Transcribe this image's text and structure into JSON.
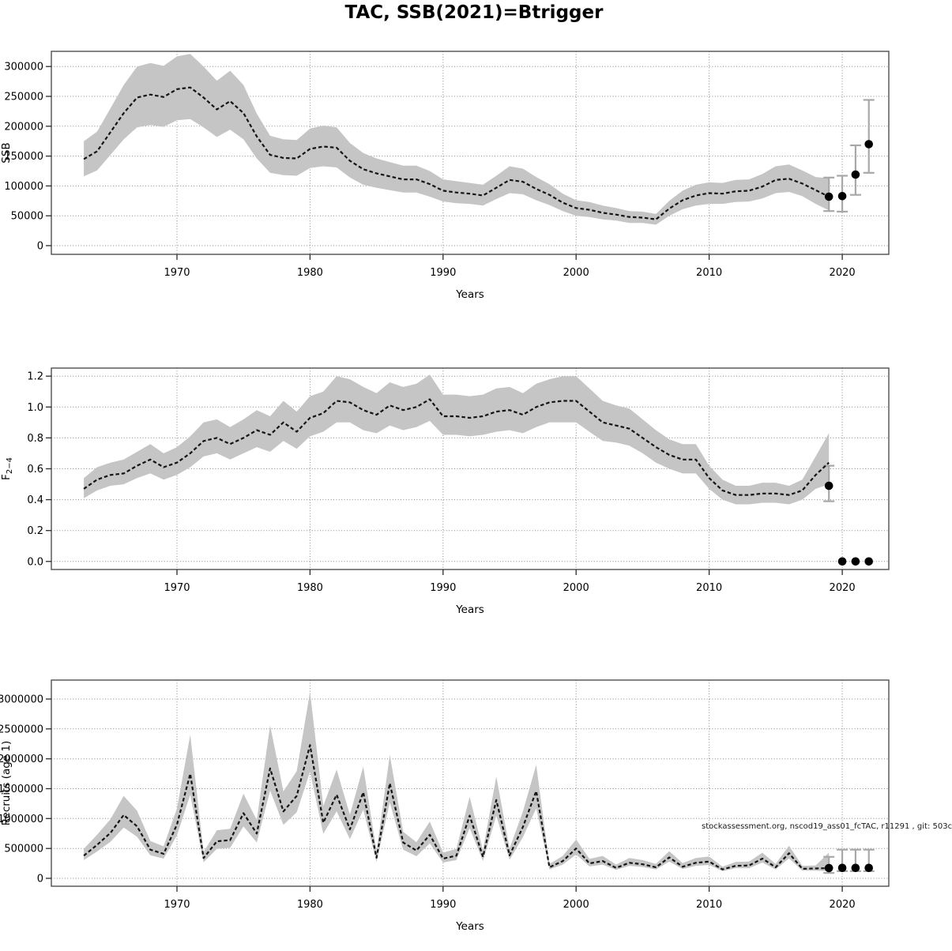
{
  "title": "TAC, SSB(2021)=Btrigger",
  "watermark": "stockassessment.org, nscod19_ass01_fcTAC, r11291 , git: 503c",
  "colors": {
    "estimate_line": "#141414",
    "confidence_ribbon": "#c5c5c5",
    "errorbar": "#a8a8a8",
    "forecast_point": "#000000",
    "gridline": "#878787",
    "frame": "#4f4f4f",
    "background": "#ffffff"
  },
  "chart_data": [
    {
      "type": "line",
      "name": "ssb-panel",
      "title": "",
      "xlabel": "Years",
      "ylabel": "SSB",
      "ylim": [
        0,
        325000
      ],
      "grid": true,
      "xticks": [
        1970,
        1980,
        1990,
        2000,
        2010,
        2020
      ],
      "xtick_labels": [
        "1970",
        "1980",
        "1990",
        "2000",
        "2010",
        "2020"
      ],
      "yticks": [
        0,
        50000,
        100000,
        150000,
        200000,
        250000,
        300000
      ],
      "ytick_labels": [
        "0",
        "50000",
        "100000",
        "150000",
        "200000",
        "250000",
        "300000"
      ],
      "x": [
        1963,
        1964,
        1965,
        1966,
        1967,
        1968,
        1969,
        1970,
        1971,
        1972,
        1973,
        1974,
        1975,
        1976,
        1977,
        1978,
        1979,
        1980,
        1981,
        1982,
        1983,
        1984,
        1985,
        1986,
        1987,
        1988,
        1989,
        1990,
        1991,
        1992,
        1993,
        1994,
        1995,
        1996,
        1997,
        1998,
        1999,
        2000,
        2001,
        2002,
        2003,
        2004,
        2005,
        2006,
        2007,
        2008,
        2009,
        2010,
        2011,
        2012,
        2013,
        2014,
        2015,
        2016,
        2017,
        2018,
        2019
      ],
      "series": [
        {
          "name": "SSB estimate",
          "values": [
            145000,
            158000,
            190000,
            222000,
            248000,
            253000,
            249000,
            262000,
            265000,
            248000,
            228000,
            242000,
            222000,
            183000,
            152000,
            147000,
            146000,
            162000,
            166000,
            164000,
            142000,
            128000,
            121000,
            116000,
            111000,
            111000,
            103000,
            92000,
            89000,
            87000,
            84000,
            97000,
            110000,
            107000,
            95000,
            85000,
            72000,
            63000,
            60000,
            55000,
            52000,
            48000,
            47000,
            44000,
            62000,
            76000,
            84000,
            88000,
            87000,
            91000,
            92000,
            99000,
            110000,
            112000,
            104000,
            93000,
            82000
          ]
        },
        {
          "name": "lower 95% CI",
          "values": [
            116000,
            126000,
            152000,
            178000,
            198000,
            202000,
            199000,
            210000,
            212000,
            198000,
            182000,
            194000,
            178000,
            146000,
            122000,
            118000,
            117000,
            130000,
            133000,
            131000,
            114000,
            102000,
            97000,
            93000,
            89000,
            89000,
            82000,
            74000,
            71000,
            70000,
            67000,
            78000,
            88000,
            86000,
            76000,
            68000,
            58000,
            50000,
            48000,
            44000,
            42000,
            38000,
            38000,
            35000,
            50000,
            61000,
            67000,
            70000,
            70000,
            73000,
            74000,
            79000,
            88000,
            90000,
            83000,
            70000,
            59000
          ]
        },
        {
          "name": "upper 95% CI",
          "values": [
            175000,
            191000,
            230000,
            269000,
            300000,
            306000,
            301000,
            317000,
            321000,
            300000,
            276000,
            293000,
            269000,
            221000,
            184000,
            178000,
            177000,
            196000,
            201000,
            198000,
            172000,
            155000,
            146000,
            140000,
            134000,
            134000,
            125000,
            111000,
            108000,
            105000,
            102000,
            117000,
            133000,
            129000,
            115000,
            103000,
            87000,
            76000,
            73000,
            67000,
            63000,
            58000,
            57000,
            53000,
            75000,
            92000,
            102000,
            106000,
            105000,
            110000,
            111000,
            120000,
            133000,
            136000,
            126000,
            115000,
            113000
          ]
        }
      ],
      "forecast": {
        "years": [
          2019,
          2020,
          2021,
          2022
        ],
        "values": [
          82000,
          83000,
          119000,
          170000
        ],
        "lo": [
          58000,
          57000,
          85000,
          122000
        ],
        "hi": [
          114000,
          117000,
          168000,
          244000
        ]
      }
    },
    {
      "type": "line",
      "name": "fishing-mortality-panel",
      "title": "",
      "xlabel": "Years",
      "ylabel": "F",
      "ylabel_sub": "2−4",
      "ylim": [
        0,
        1.25
      ],
      "grid": true,
      "xticks": [
        1970,
        1980,
        1990,
        2000,
        2010,
        2020
      ],
      "xtick_labels": [
        "1970",
        "1980",
        "1990",
        "2000",
        "2010",
        "2020"
      ],
      "yticks": [
        0.0,
        0.2,
        0.4,
        0.6,
        0.8,
        1.0,
        1.2
      ],
      "ytick_labels": [
        "0.0",
        "0.2",
        "0.4",
        "0.6",
        "0.8",
        "1.0",
        "1.2"
      ],
      "x": [
        1963,
        1964,
        1965,
        1966,
        1967,
        1968,
        1969,
        1970,
        1971,
        1972,
        1973,
        1974,
        1975,
        1976,
        1977,
        1978,
        1979,
        1980,
        1981,
        1982,
        1983,
        1984,
        1985,
        1986,
        1987,
        1988,
        1989,
        1990,
        1991,
        1992,
        1993,
        1994,
        1995,
        1996,
        1997,
        1998,
        1999,
        2000,
        2001,
        2002,
        2003,
        2004,
        2005,
        2006,
        2007,
        2008,
        2009,
        2010,
        2011,
        2012,
        2013,
        2014,
        2015,
        2016,
        2017,
        2018,
        2019
      ],
      "series": [
        {
          "name": "F estimate",
          "values": [
            0.47,
            0.53,
            0.56,
            0.57,
            0.62,
            0.66,
            0.61,
            0.64,
            0.7,
            0.78,
            0.8,
            0.76,
            0.8,
            0.85,
            0.82,
            0.9,
            0.84,
            0.93,
            0.96,
            1.04,
            1.03,
            0.98,
            0.95,
            1.01,
            0.98,
            1.0,
            1.05,
            0.94,
            0.94,
            0.93,
            0.94,
            0.97,
            0.98,
            0.95,
            1.0,
            1.03,
            1.04,
            1.04,
            0.97,
            0.9,
            0.88,
            0.86,
            0.8,
            0.74,
            0.69,
            0.66,
            0.66,
            0.54,
            0.46,
            0.43,
            0.43,
            0.44,
            0.44,
            0.43,
            0.46,
            0.56,
            0.64
          ]
        },
        {
          "name": "lower 95% CI",
          "values": [
            0.41,
            0.46,
            0.49,
            0.5,
            0.54,
            0.57,
            0.53,
            0.56,
            0.61,
            0.68,
            0.7,
            0.66,
            0.7,
            0.74,
            0.71,
            0.78,
            0.73,
            0.81,
            0.84,
            0.9,
            0.9,
            0.85,
            0.83,
            0.88,
            0.85,
            0.87,
            0.91,
            0.82,
            0.82,
            0.81,
            0.82,
            0.84,
            0.85,
            0.83,
            0.87,
            0.9,
            0.9,
            0.9,
            0.84,
            0.78,
            0.77,
            0.75,
            0.7,
            0.64,
            0.6,
            0.57,
            0.57,
            0.47,
            0.4,
            0.37,
            0.37,
            0.38,
            0.38,
            0.37,
            0.4,
            0.47,
            0.5
          ]
        },
        {
          "name": "upper 95% CI",
          "values": [
            0.54,
            0.61,
            0.64,
            0.66,
            0.71,
            0.76,
            0.7,
            0.74,
            0.81,
            0.9,
            0.92,
            0.87,
            0.92,
            0.98,
            0.94,
            1.04,
            0.97,
            1.07,
            1.1,
            1.2,
            1.18,
            1.13,
            1.09,
            1.16,
            1.13,
            1.15,
            1.21,
            1.08,
            1.08,
            1.07,
            1.08,
            1.12,
            1.13,
            1.09,
            1.15,
            1.18,
            1.2,
            1.2,
            1.12,
            1.04,
            1.01,
            0.99,
            0.92,
            0.85,
            0.79,
            0.76,
            0.76,
            0.62,
            0.53,
            0.49,
            0.49,
            0.51,
            0.51,
            0.49,
            0.53,
            0.68,
            0.83
          ]
        }
      ],
      "forecast": {
        "years": [
          2019,
          2020,
          2021,
          2022
        ],
        "values": [
          0.49,
          0.0,
          0.0,
          0.0
        ],
        "lo": [
          0.39,
          null,
          null,
          null
        ],
        "hi": [
          0.62,
          null,
          null,
          null
        ]
      }
    },
    {
      "type": "line",
      "name": "recruits-panel",
      "title": "",
      "xlabel": "Years",
      "ylabel": "Recruits (age 1)",
      "ylim": [
        0,
        3300000
      ],
      "grid": true,
      "xticks": [
        1970,
        1980,
        1990,
        2000,
        2010,
        2020
      ],
      "xtick_labels": [
        "1970",
        "1980",
        "1990",
        "2000",
        "2010",
        "2020"
      ],
      "yticks": [
        0,
        500000,
        1000000,
        1500000,
        2000000,
        2500000,
        3000000
      ],
      "ytick_labels": [
        "0",
        "500000",
        "1000000",
        "1500000",
        "2000000",
        "2500000",
        "3000000"
      ],
      "x": [
        1963,
        1964,
        1965,
        1966,
        1967,
        1968,
        1969,
        1970,
        1971,
        1972,
        1973,
        1974,
        1975,
        1976,
        1977,
        1978,
        1979,
        1980,
        1981,
        1982,
        1983,
        1984,
        1985,
        1986,
        1987,
        1988,
        1989,
        1990,
        1991,
        1992,
        1993,
        1994,
        1995,
        1996,
        1997,
        1998,
        1999,
        2000,
        2001,
        2002,
        2003,
        2004,
        2005,
        2006,
        2007,
        2008,
        2009,
        2010,
        2011,
        2012,
        2013,
        2014,
        2015,
        2016,
        2017,
        2018,
        2019
      ],
      "series": [
        {
          "name": "Recruitment estimate",
          "values": [
            380000,
            560000,
            760000,
            1060000,
            870000,
            480000,
            410000,
            900000,
            1750000,
            340000,
            620000,
            640000,
            1090000,
            750000,
            1840000,
            1120000,
            1380000,
            2230000,
            930000,
            1400000,
            820000,
            1440000,
            345000,
            1590000,
            600000,
            465000,
            730000,
            330000,
            380000,
            1050000,
            360000,
            1310000,
            385000,
            860000,
            1460000,
            185000,
            290000,
            500000,
            250000,
            290000,
            175000,
            260000,
            235000,
            185000,
            350000,
            195000,
            260000,
            280000,
            150000,
            210000,
            215000,
            330000,
            185000,
            420000,
            160000,
            165000,
            172000
          ]
        },
        {
          "name": "lower 95% CI",
          "values": [
            305000,
            450000,
            610000,
            850000,
            695000,
            385000,
            330000,
            720000,
            1400000,
            270000,
            495000,
            510000,
            870000,
            600000,
            1470000,
            895000,
            1105000,
            1785000,
            745000,
            1120000,
            655000,
            1150000,
            275000,
            1270000,
            480000,
            370000,
            585000,
            265000,
            305000,
            840000,
            290000,
            1050000,
            310000,
            690000,
            1170000,
            150000,
            230000,
            400000,
            200000,
            230000,
            140000,
            210000,
            190000,
            150000,
            280000,
            155000,
            210000,
            225000,
            120000,
            170000,
            170000,
            265000,
            150000,
            335000,
            130000,
            130000,
            120000
          ]
        },
        {
          "name": "upper 95% CI",
          "values": [
            495000,
            730000,
            990000,
            1380000,
            1130000,
            625000,
            535000,
            1170000,
            2400000,
            440000,
            805000,
            830000,
            1415000,
            975000,
            2560000,
            1455000,
            1795000,
            3120000,
            1210000,
            1820000,
            1065000,
            1870000,
            450000,
            2065000,
            780000,
            605000,
            950000,
            430000,
            495000,
            1365000,
            470000,
            1705000,
            500000,
            1120000,
            1900000,
            240000,
            375000,
            650000,
            325000,
            375000,
            230000,
            340000,
            305000,
            240000,
            455000,
            255000,
            340000,
            365000,
            195000,
            275000,
            280000,
            430000,
            240000,
            545000,
            210000,
            215000,
            430000
          ]
        }
      ],
      "forecast": {
        "years": [
          2019,
          2020,
          2021,
          2022
        ],
        "values": [
          172000,
          175000,
          175000,
          175000
        ],
        "lo": [
          90000,
          120000,
          120000,
          120000
        ],
        "hi": [
          360000,
          480000,
          480000,
          480000
        ]
      }
    }
  ]
}
